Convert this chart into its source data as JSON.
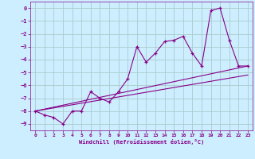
{
  "xlabel": "Windchill (Refroidissement éolien,°C)",
  "xlim": [
    -0.5,
    23.5
  ],
  "ylim": [
    -9.5,
    0.5
  ],
  "yticks": [
    0,
    -1,
    -2,
    -3,
    -4,
    -5,
    -6,
    -7,
    -8,
    -9
  ],
  "xticks": [
    0,
    1,
    2,
    3,
    4,
    5,
    6,
    7,
    8,
    9,
    10,
    11,
    12,
    13,
    14,
    15,
    16,
    17,
    18,
    19,
    20,
    21,
    22,
    23
  ],
  "background_color": "#cceeff",
  "grid_color": "#aacccc",
  "line_color": "#880088",
  "line1_x": [
    0,
    1,
    2,
    3,
    4,
    5,
    6,
    7,
    8,
    9,
    10,
    11,
    12,
    13,
    14,
    15,
    16,
    17,
    18,
    19,
    20,
    21,
    22,
    23
  ],
  "line1_y": [
    -8.0,
    -8.3,
    -8.5,
    -9.0,
    -8.0,
    -8.0,
    -6.5,
    -7.0,
    -7.3,
    -6.5,
    -5.5,
    -3.0,
    -4.2,
    -3.5,
    -2.6,
    -2.5,
    -2.2,
    -3.5,
    -4.5,
    -0.2,
    0.0,
    -2.5,
    -4.5,
    -4.5
  ],
  "line2_x": [
    0,
    23
  ],
  "line2_y": [
    -8.0,
    -4.5
  ],
  "line3_x": [
    0,
    23
  ],
  "line3_y": [
    -8.0,
    -5.2
  ]
}
